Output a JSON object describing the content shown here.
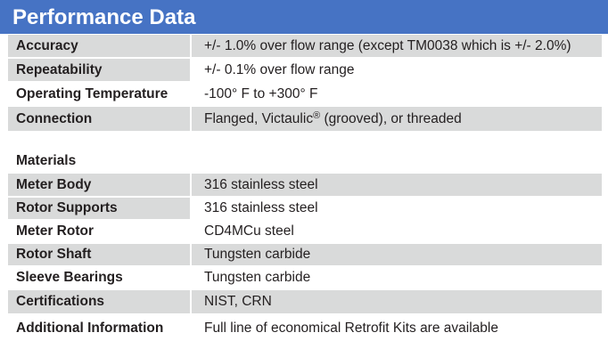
{
  "header": {
    "title": "Performance Data"
  },
  "performance": [
    {
      "label": "Accuracy",
      "value": "+/- 1.0% over flow range (except TM0038 which is +/- 2.0%)"
    },
    {
      "label": "Repeatability",
      "value": "+/- 0.1% over flow range"
    },
    {
      "label": "Operating Temperature",
      "value": "-100° F to +300° F"
    }
  ],
  "connection": {
    "label": "Connection",
    "value_pre": "Flanged, Victaulic",
    "value_sup": "®",
    "value_post": " (grooved), or threaded"
  },
  "materials_heading": "Materials",
  "materials": [
    {
      "label": "Meter Body",
      "value": "316 stainless steel"
    },
    {
      "label": "Rotor Supports",
      "value": "316 stainless steel"
    },
    {
      "label": "Meter Rotor",
      "value": "CD4MCu steel"
    },
    {
      "label": "Rotor Shaft",
      "value": "Tungsten carbide"
    },
    {
      "label": "Sleeve Bearings",
      "value": "Tungsten carbide"
    },
    {
      "label": "Certifications",
      "value": "NIST, CRN"
    },
    {
      "label": "Additional Information",
      "value": "Full line of economical Retrofit Kits are available"
    }
  ],
  "colors": {
    "header_bg": "#4673c4",
    "header_text": "#ffffff",
    "shade_row": "#d9dada"
  }
}
